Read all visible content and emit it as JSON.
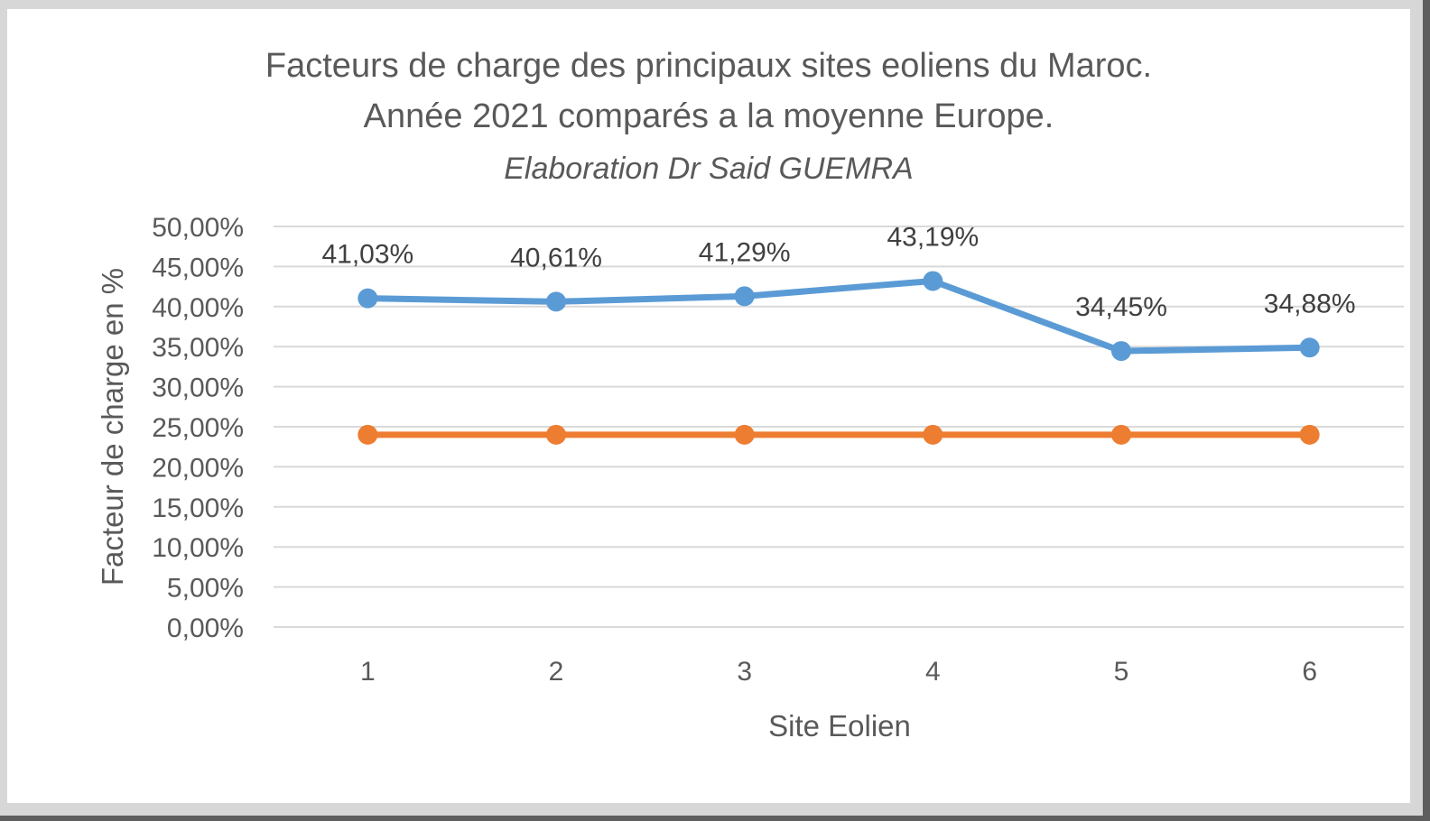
{
  "chart_data": {
    "type": "line",
    "title": "Facteurs de charge des principaux sites eoliens du Maroc.",
    "title_line2": "Année 2021 comparés a la moyenne Europe.",
    "subtitle": "Elaboration Dr Said GUEMRA",
    "xlabel": "Site Eolien",
    "ylabel": "Facteur de charge en %",
    "categories": [
      "1",
      "2",
      "3",
      "4",
      "5",
      "6"
    ],
    "ylim": [
      0,
      50
    ],
    "yticks": [
      {
        "value": 0,
        "label": "0,00%"
      },
      {
        "value": 5,
        "label": "5,00%"
      },
      {
        "value": 10,
        "label": "10,00%"
      },
      {
        "value": 15,
        "label": "15,00%"
      },
      {
        "value": 20,
        "label": "20,00%"
      },
      {
        "value": 25,
        "label": "25,00%"
      },
      {
        "value": 30,
        "label": "30,00%"
      },
      {
        "value": 35,
        "label": "35,00%"
      },
      {
        "value": 40,
        "label": "40,00%"
      },
      {
        "value": 45,
        "label": "45,00%"
      },
      {
        "value": 50,
        "label": "50,00%"
      }
    ],
    "grid": true,
    "legend": "none",
    "series": [
      {
        "values": [
          41.03,
          40.61,
          41.29,
          43.19,
          34.45,
          34.88
        ],
        "labels": [
          "41,03%",
          "40,61%",
          "41,29%",
          "43,19%",
          "34,45%",
          "34,88%"
        ],
        "color": "#5b9bd5"
      },
      {
        "values": [
          24,
          24,
          24,
          24,
          24,
          24
        ],
        "color": "#ed7d31"
      }
    ]
  }
}
